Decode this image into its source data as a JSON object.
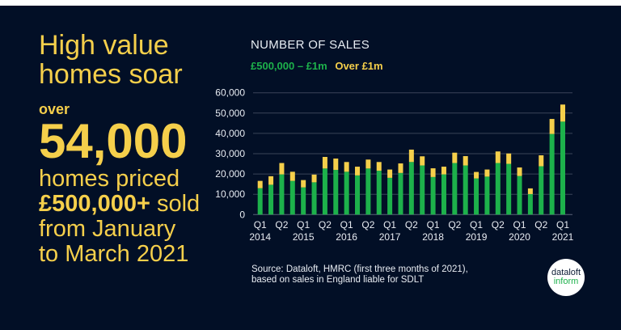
{
  "headline": {
    "line1": "High value",
    "line2": "homes soar",
    "over": "over",
    "number": "54,000",
    "body1": "homes priced",
    "body2_bold": "£500,000+",
    "body2_rest": " sold",
    "body3": "from January",
    "body4": "to March 2021"
  },
  "source": {
    "line1": "Source: Dataloft, HMRC (first three months of 2021),",
    "line2": "based on sales in England liable for SDLT"
  },
  "logo": {
    "line1": "dataloft",
    "line2": "inform"
  },
  "colors": {
    "background": "#020f26",
    "accent": "#f5cf4b",
    "green": "#1db14b"
  },
  "chart_data": {
    "type": "bar",
    "stacked": true,
    "title": "NUMBER OF SALES",
    "ylim": [
      0,
      60000
    ],
    "yticks": [
      "0",
      "10,000",
      "20,000",
      "30,000",
      "40,000",
      "50,000",
      "60,000"
    ],
    "grid": true,
    "legend_placement": "top-left",
    "xtick_labels": [
      [
        "Q1",
        "2014"
      ],
      [
        "Q2",
        ""
      ],
      [
        "Q1",
        "2015"
      ],
      [
        "Q2",
        ""
      ],
      [
        "Q1",
        "2016"
      ],
      [
        "Q2",
        ""
      ],
      [
        "Q1",
        "2017"
      ],
      [
        "Q2",
        ""
      ],
      [
        "Q1",
        "2018"
      ],
      [
        "Q2",
        ""
      ],
      [
        "Q1",
        "2019"
      ],
      [
        "Q2",
        ""
      ],
      [
        "Q1",
        "2020"
      ],
      [
        "Q2",
        ""
      ],
      [
        "Q1",
        "2021"
      ]
    ],
    "series": [
      {
        "name": "£500,000 – £1m",
        "color": "#1db14b",
        "values": [
          13000,
          14700,
          19800,
          16600,
          13400,
          15900,
          22700,
          22000,
          21100,
          19300,
          22700,
          21600,
          18100,
          20500,
          25900,
          24200,
          18500,
          19800,
          25400,
          24200,
          17800,
          18700,
          25400,
          25000,
          19000,
          10100,
          23800,
          39700,
          45800
        ]
      },
      {
        "name": "Over £1m",
        "color": "#f5cf4b",
        "values": [
          3600,
          4200,
          5600,
          4500,
          3600,
          3800,
          5700,
          5600,
          4800,
          4300,
          4400,
          4300,
          4100,
          4700,
          6100,
          4500,
          4300,
          3800,
          5100,
          4600,
          3200,
          3500,
          5700,
          5100,
          4200,
          2800,
          5400,
          7400,
          8400
        ]
      }
    ]
  }
}
